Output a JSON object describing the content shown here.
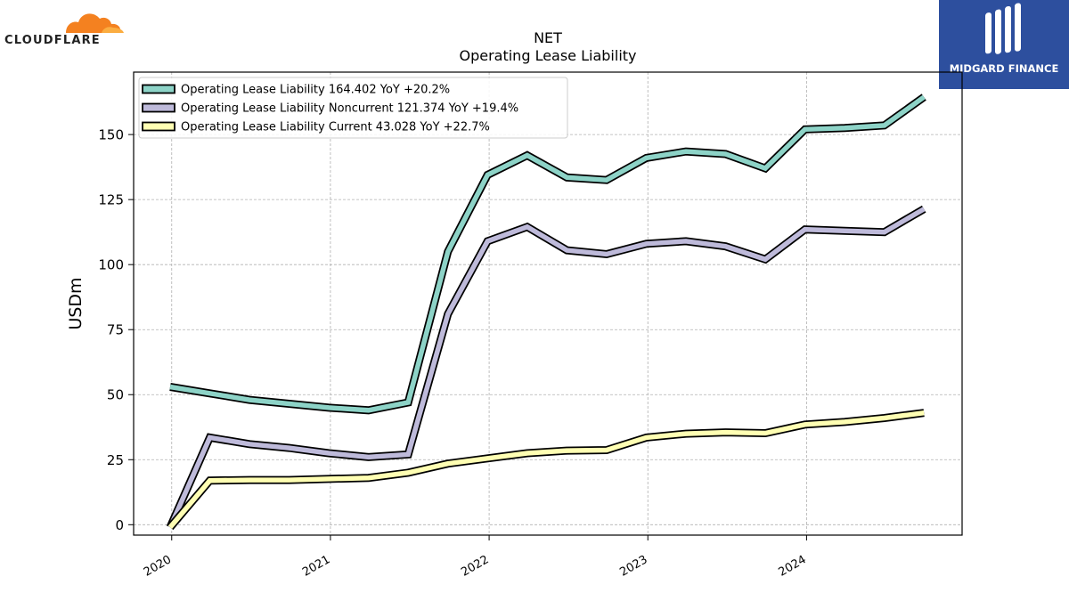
{
  "brand": {
    "left_logo_text": "CLOUDFLARE",
    "right_logo_text": "MIDGARD FINANCE",
    "left_logo_color": "#f48120",
    "right_logo_color": "#2d4f9e"
  },
  "chart_data": {
    "type": "line",
    "title": "NET",
    "subtitle": "Operating Lease Liability",
    "xlabel": "",
    "ylabel": "USDm",
    "ylim": [
      -4,
      174
    ],
    "xlim": [
      2019.76,
      2024.98
    ],
    "yticks": [
      0,
      25,
      50,
      75,
      100,
      125,
      150
    ],
    "xticks": [
      2020,
      2021,
      2022,
      2023,
      2024
    ],
    "xtick_labels": [
      "2020",
      "2021",
      "2022",
      "2023",
      "2024"
    ],
    "grid": true,
    "legend_position": "top-left",
    "x": [
      2019.99,
      2020.24,
      2020.49,
      2020.74,
      2020.99,
      2021.24,
      2021.49,
      2021.74,
      2021.99,
      2022.24,
      2022.49,
      2022.74,
      2022.99,
      2023.24,
      2023.49,
      2023.74,
      2023.99,
      2024.24,
      2024.49,
      2024.74
    ],
    "series": [
      {
        "name": "Operating Lease Liability",
        "legend_label": "Operating Lease Liability  164.402 YoY +20.2%",
        "color": "#8dd3c7",
        "values": [
          53,
          50.5,
          48,
          46.5,
          45,
          44,
          47,
          105,
          134.5,
          142,
          133.5,
          132.5,
          141,
          143.5,
          142.5,
          137,
          152,
          152.5,
          153.5,
          164.4
        ]
      },
      {
        "name": "Operating Lease Liability Noncurrent",
        "legend_label": "Operating Lease Liability Noncurrent  121.374 YoY +19.4%",
        "color": "#bebada",
        "values": [
          -1,
          33.5,
          31,
          29.5,
          27.5,
          26,
          27,
          81,
          109,
          114.5,
          105.5,
          104,
          108,
          109,
          107,
          102,
          113.5,
          113,
          112.5,
          121.4
        ]
      },
      {
        "name": "Operating Lease Liability Current",
        "legend_label": "Operating Lease Liability Current  43.028 YoY +22.7%",
        "color": "#ffffb3",
        "values": [
          -1,
          17,
          17.2,
          17.2,
          17.6,
          18,
          20,
          23.5,
          25.5,
          27.5,
          28.5,
          28.7,
          33.5,
          35,
          35.5,
          35.2,
          38.5,
          39.5,
          41,
          43
        ]
      }
    ]
  }
}
